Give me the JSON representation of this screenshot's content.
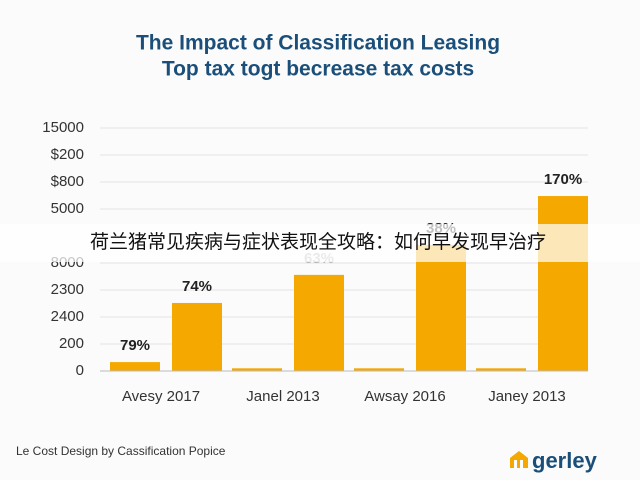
{
  "chart_data": {
    "type": "bar",
    "title": [
      "The Impact of Classification Leasing",
      "Top tax togt becrease tax costs"
    ],
    "categories": [
      "Avesy 2017",
      "Janel 2013",
      "Awsay 2016",
      "Janey 2013"
    ],
    "series": [
      {
        "color": "#f5a800",
        "values": [
          0.33,
          0.1,
          0.1,
          0.1
        ]
      },
      {
        "color": "#f5a800",
        "values": [
          2.52,
          3.56,
          4.67,
          6.48
        ]
      }
    ],
    "bar_labels": [
      "79%",
      "74%",
      "63%",
      "38%",
      "170%"
    ],
    "ylim": [
      0,
      9
    ],
    "yticks": [
      0,
      {
        "value": 1,
        "label": "200"
      },
      {
        "value": 2,
        "label": "2400"
      },
      {
        "value": 3,
        "label": "2300"
      },
      {
        "value": 4,
        "label": "8000"
      },
      {
        "value": 6,
        "label": "5000"
      },
      {
        "value": 7,
        "label": "$800"
      },
      {
        "value": 8,
        "label": "$200"
      },
      {
        "value": 9,
        "label": "15000"
      }
    ],
    "grid": true,
    "banner": "荷兰猪常见疾病与症状表现全攻略：如何早发现早治疗",
    "footer": "Le Cost Design by Cassification Popice",
    "logo": "gerley"
  }
}
